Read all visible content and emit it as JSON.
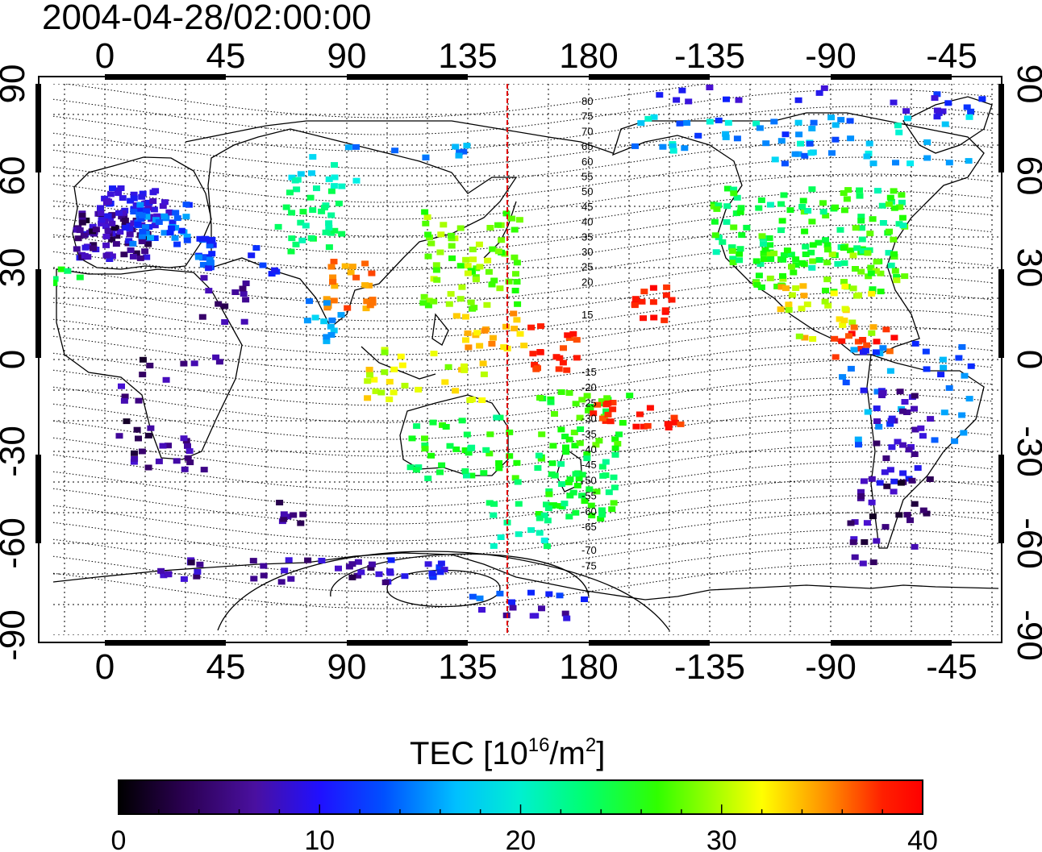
{
  "title": "2004-04-28/02:00:00",
  "map": {
    "x_ticks": [
      "0",
      "45",
      "90",
      "135",
      "180",
      "-135",
      "-90",
      "-45"
    ],
    "y_ticks": [
      "90",
      "60",
      "30",
      "0",
      "-30",
      "-60",
      "-90"
    ],
    "marker_longitude": 150,
    "contour_labels_north": [
      "80",
      "75",
      "70",
      "65",
      "60",
      "55",
      "50",
      "45",
      "40",
      "35",
      "30",
      "25",
      "20",
      "15"
    ],
    "contour_labels_south": [
      "-15",
      "-20",
      "-25",
      "-30",
      "-35",
      "-40",
      "-45",
      "-50",
      "-55",
      "-60",
      "-65",
      "-70",
      "-75"
    ],
    "marker_color": "#e00000"
  },
  "colorbar": {
    "label_main": "TEC  [10",
    "label_sup1": "16",
    "label_mid": "/m",
    "label_sup2": "2",
    "label_end": "]",
    "ticks": [
      "0",
      "10",
      "20",
      "30",
      "40"
    ],
    "min": 0,
    "max": 40,
    "colors": [
      "#000000",
      "#3a0070",
      "#4a10d0",
      "#0a20ff",
      "#00a0ff",
      "#00f0f0",
      "#00ff70",
      "#10ff00",
      "#80ff00",
      "#ffff00",
      "#ff9000",
      "#ff2000",
      "#ff0000"
    ]
  }
}
